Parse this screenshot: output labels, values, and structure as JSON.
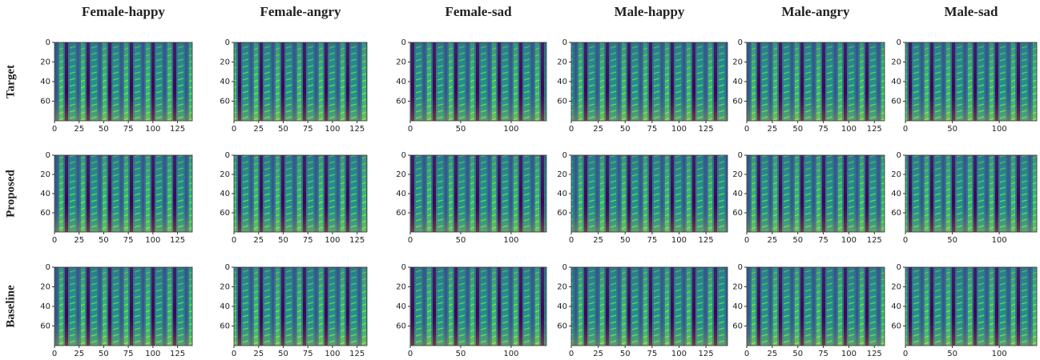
{
  "column_titles": [
    "Female-happy",
    "Female-angry",
    "Female-sad",
    "Male-happy",
    "Male-angry",
    "Male-sad"
  ],
  "row_labels": [
    "Target",
    "Proposed",
    "Baseline"
  ],
  "chart_data": [
    {
      "type": "spectrogram",
      "xlim": [
        0,
        140
      ],
      "xticks": [
        0,
        25,
        50,
        75,
        100,
        125
      ],
      "ylim": [
        0,
        80
      ],
      "yticks": [
        0,
        20,
        40,
        60
      ],
      "y_inverted": true
    },
    {
      "type": "spectrogram",
      "xlim": [
        0,
        135
      ],
      "xticks": [
        0,
        25,
        50,
        75,
        100,
        125
      ],
      "ylim": [
        0,
        80
      ],
      "yticks": [
        0,
        20,
        40,
        60
      ],
      "y_inverted": true
    },
    {
      "type": "spectrogram",
      "xlim": [
        0,
        135
      ],
      "xticks": [
        0,
        50,
        100
      ],
      "ylim": [
        0,
        80
      ],
      "yticks": [
        0,
        20,
        40,
        60
      ],
      "y_inverted": true
    },
    {
      "type": "spectrogram",
      "xlim": [
        0,
        145
      ],
      "xticks": [
        0,
        25,
        50,
        75,
        100,
        125
      ],
      "ylim": [
        0,
        80
      ],
      "yticks": [
        0,
        20,
        40,
        60
      ],
      "y_inverted": true
    },
    {
      "type": "spectrogram",
      "xlim": [
        0,
        135
      ],
      "xticks": [
        0,
        25,
        50,
        75,
        100,
        125
      ],
      "ylim": [
        0,
        80
      ],
      "yticks": [
        0,
        20,
        40,
        60
      ],
      "y_inverted": true
    },
    {
      "type": "spectrogram",
      "xlim": [
        0,
        140
      ],
      "xticks": [
        0,
        50,
        100
      ],
      "ylim": [
        0,
        80
      ],
      "yticks": [
        0,
        20,
        40,
        60
      ],
      "y_inverted": true
    },
    {
      "type": "spectrogram",
      "xlim": [
        0,
        140
      ],
      "xticks": [
        0,
        25,
        50,
        75,
        100,
        125
      ],
      "ylim": [
        0,
        80
      ],
      "yticks": [
        0,
        20,
        40,
        60
      ],
      "y_inverted": true
    },
    {
      "type": "spectrogram",
      "xlim": [
        0,
        135
      ],
      "xticks": [
        0,
        25,
        50,
        75,
        100,
        125
      ],
      "ylim": [
        0,
        80
      ],
      "yticks": [
        0,
        20,
        40,
        60
      ],
      "y_inverted": true
    },
    {
      "type": "spectrogram",
      "xlim": [
        0,
        135
      ],
      "xticks": [
        0,
        50,
        100
      ],
      "ylim": [
        0,
        80
      ],
      "yticks": [
        0,
        20,
        40,
        60
      ],
      "y_inverted": true
    },
    {
      "type": "spectrogram",
      "xlim": [
        0,
        145
      ],
      "xticks": [
        0,
        25,
        50,
        75,
        100,
        125
      ],
      "ylim": [
        0,
        80
      ],
      "yticks": [
        0,
        20,
        40,
        60
      ],
      "y_inverted": true
    },
    {
      "type": "spectrogram",
      "xlim": [
        0,
        135
      ],
      "xticks": [
        0,
        25,
        50,
        75,
        100,
        125
      ],
      "ylim": [
        0,
        80
      ],
      "yticks": [
        0,
        20,
        40,
        60
      ],
      "y_inverted": true
    },
    {
      "type": "spectrogram",
      "xlim": [
        0,
        140
      ],
      "xticks": [
        0,
        50,
        100
      ],
      "ylim": [
        0,
        80
      ],
      "yticks": [
        0,
        20,
        40,
        60
      ],
      "y_inverted": true
    },
    {
      "type": "spectrogram",
      "xlim": [
        0,
        140
      ],
      "xticks": [
        0,
        25,
        50,
        75,
        100,
        125
      ],
      "ylim": [
        0,
        80
      ],
      "yticks": [
        0,
        20,
        40,
        60
      ],
      "y_inverted": true
    },
    {
      "type": "spectrogram",
      "xlim": [
        0,
        135
      ],
      "xticks": [
        0,
        25,
        50,
        75,
        100,
        125
      ],
      "ylim": [
        0,
        80
      ],
      "yticks": [
        0,
        20,
        40,
        60
      ],
      "y_inverted": true
    },
    {
      "type": "spectrogram",
      "xlim": [
        0,
        135
      ],
      "xticks": [
        0,
        50,
        100
      ],
      "ylim": [
        0,
        80
      ],
      "yticks": [
        0,
        20,
        40,
        60
      ],
      "y_inverted": true
    },
    {
      "type": "spectrogram",
      "xlim": [
        0,
        145
      ],
      "xticks": [
        0,
        25,
        50,
        75,
        100,
        125
      ],
      "ylim": [
        0,
        80
      ],
      "yticks": [
        0,
        20,
        40,
        60
      ],
      "y_inverted": true
    },
    {
      "type": "spectrogram",
      "xlim": [
        0,
        135
      ],
      "xticks": [
        0,
        25,
        50,
        75,
        100,
        125
      ],
      "ylim": [
        0,
        80
      ],
      "yticks": [
        0,
        20,
        40,
        60
      ],
      "y_inverted": true
    },
    {
      "type": "spectrogram",
      "xlim": [
        0,
        140
      ],
      "xticks": [
        0,
        50,
        100
      ],
      "ylim": [
        0,
        80
      ],
      "yticks": [
        0,
        20,
        40,
        60
      ],
      "y_inverted": true
    }
  ]
}
